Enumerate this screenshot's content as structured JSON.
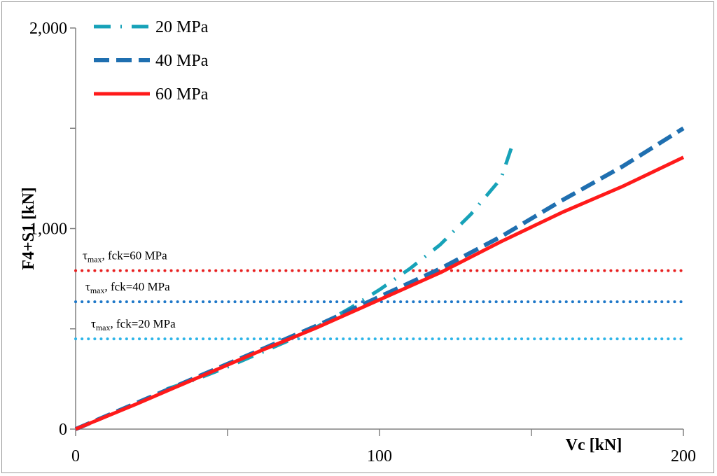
{
  "chart_data": {
    "type": "line",
    "xlabel": "Vc [kN]",
    "ylabel": "F4+S1 [kN]",
    "xlim": [
      0,
      200
    ],
    "ylim": [
      0,
      2000
    ],
    "x_ticks": [
      0,
      100,
      200
    ],
    "x_tick_labels": [
      "0",
      "100",
      "200"
    ],
    "x_minor_ticks": [
      50,
      150
    ],
    "y_ticks": [
      0,
      1000,
      2000
    ],
    "y_tick_labels": [
      "0",
      "1,000",
      "2,000"
    ],
    "grid": false,
    "legend_position": "top-left",
    "series": [
      {
        "name": "20 MPa",
        "color": "#17a2b8",
        "style": "dash-dot",
        "x": [
          30,
          40,
          50,
          60,
          70,
          80,
          90,
          100,
          110,
          120,
          130,
          140,
          144
        ],
        "y": [
          200,
          250,
          310,
          375,
          440,
          515,
          600,
          695,
          800,
          920,
          1070,
          1250,
          1430
        ]
      },
      {
        "name": "40 MPa",
        "color": "#1f6fb0",
        "style": "dashed",
        "x": [
          0,
          20,
          40,
          60,
          80,
          100,
          120,
          140,
          160,
          180,
          200
        ],
        "y": [
          0,
          130,
          260,
          390,
          520,
          660,
          800,
          960,
          1140,
          1310,
          1500
        ]
      },
      {
        "name": "60 MPa",
        "color": "#ff1a1a",
        "style": "solid",
        "x": [
          0,
          20,
          40,
          60,
          80,
          100,
          120,
          140,
          160,
          180,
          200
        ],
        "y": [
          0,
          125,
          255,
          385,
          510,
          645,
          780,
          935,
          1080,
          1210,
          1355
        ]
      }
    ],
    "reference_lines": [
      {
        "label_main": "τ",
        "label_sub": "max",
        "label_rest": ", fck=60 MPa",
        "y": 790,
        "color": "#e82020"
      },
      {
        "label_main": "τ",
        "label_sub": "max",
        "label_rest": ", fck=40 MPa",
        "y": 635,
        "color": "#1f78c8"
      },
      {
        "label_main": "τ",
        "label_sub": "max",
        "label_rest": ", fck=20 MPa",
        "y": 450,
        "color": "#2fb5e8"
      }
    ]
  }
}
